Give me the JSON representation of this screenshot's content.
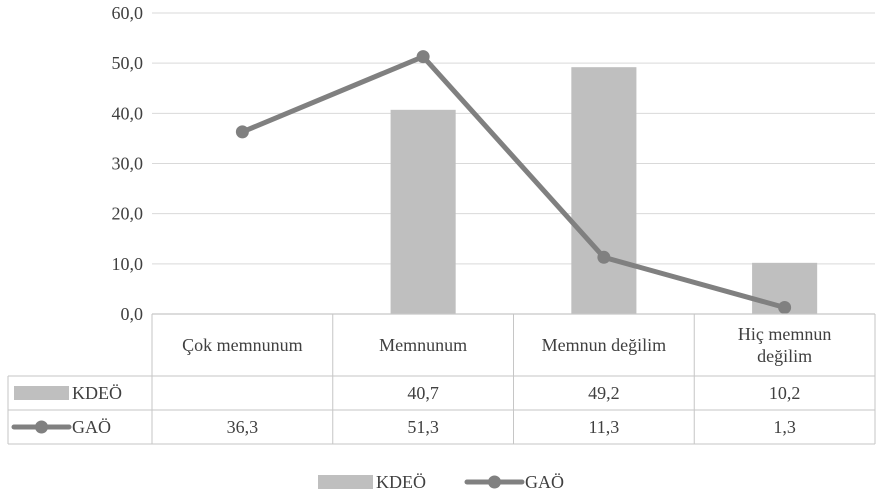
{
  "chart_data": {
    "type": "bar",
    "title": "",
    "xlabel": "",
    "ylabel": "",
    "categories": [
      "Çok memnunum",
      "Memnunum",
      "Memnun değilim",
      "Hiç memnun değilim"
    ],
    "category_lines": [
      [
        "Çok memnunum"
      ],
      [
        "Memnunum"
      ],
      [
        "Memnun değilim"
      ],
      [
        "Hiç memnun",
        "değilim"
      ]
    ],
    "ylim": [
      0,
      60
    ],
    "yticks": [
      0,
      10,
      20,
      30,
      40,
      50,
      60
    ],
    "ytick_labels": [
      "0,0",
      "10,0",
      "20,0",
      "30,0",
      "40,0",
      "50,0",
      "60,0"
    ],
    "grid": true,
    "legend_position": "bottom",
    "has_data_table": true,
    "series": [
      {
        "name": "KDEÖ",
        "type": "bar",
        "color": "#bfbfbf",
        "values": [
          null,
          40.7,
          49.2,
          10.2
        ],
        "labels": [
          "",
          "40,7",
          "49,2",
          "10,2"
        ]
      },
      {
        "name": "GAÖ",
        "type": "line",
        "color": "#808080",
        "values": [
          36.3,
          51.3,
          11.3,
          1.3
        ],
        "labels": [
          "36,3",
          "51,3",
          "11,3",
          "1,3"
        ]
      }
    ]
  }
}
